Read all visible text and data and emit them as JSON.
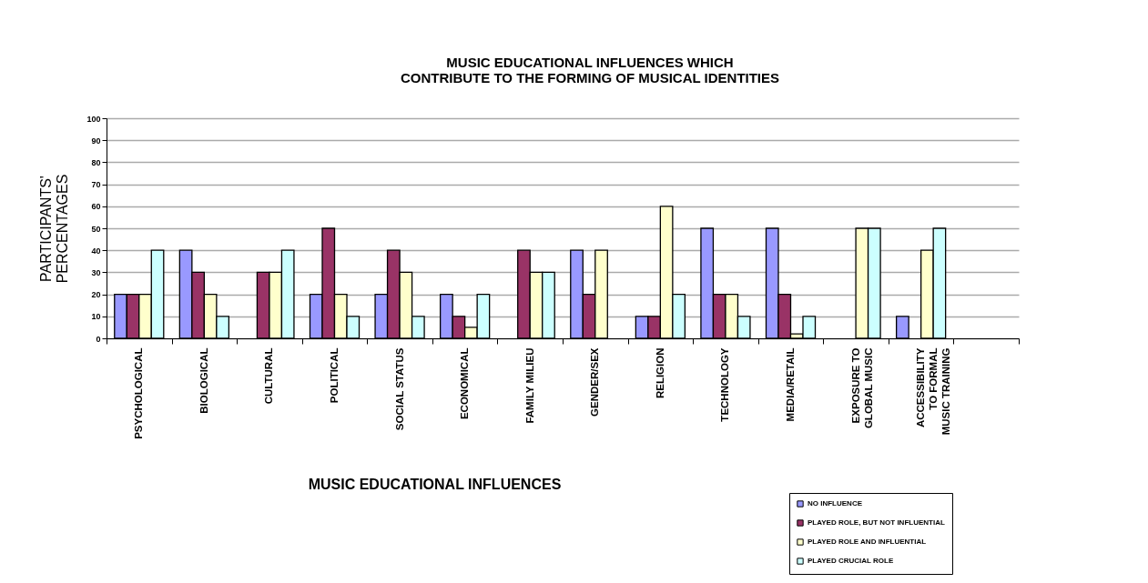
{
  "chart_data": {
    "type": "bar",
    "title": "MUSIC EDUCATIONAL INFLUENCES WHICH\nCONTRIBUTE TO THE FORMING OF MUSICAL IDENTITIES",
    "xlabel": "MUSIC EDUCATIONAL INFLUENCES",
    "ylabel": "PARTICIPANTS'\nPERCENTAGES",
    "categories": [
      "PSYCHOLOGICAL",
      "BIOLOGICAL",
      "CULTURAL",
      "POLITICAL",
      "SOCIAL STATUS",
      "ECONOMICAL",
      "FAMILY MILIEU",
      "GENDER/SEX",
      "RELIGION",
      "TECHNOLOGY",
      "MEDIA/RETAIL",
      "EXPOSURE TO\nGLOBAL MUSIC",
      "ACCESSIBILITY\nTO FORMAL\nMUSIC TRAINING",
      null
    ],
    "series": [
      {
        "name": "NO INFLUENCE",
        "color": "#9999ff",
        "values": [
          20,
          40,
          null,
          20,
          20,
          20,
          null,
          40,
          10,
          50,
          50,
          null,
          10,
          null
        ]
      },
      {
        "name": "PLAYED ROLE, BUT NOT INFLUENTIAL",
        "color": "#993366",
        "values": [
          20,
          30,
          30,
          50,
          40,
          10,
          40,
          20,
          10,
          20,
          20,
          null,
          null,
          null
        ]
      },
      {
        "name": "PLAYED ROLE AND INFLUENTIAL",
        "color": "#ffffcc",
        "values": [
          20,
          20,
          30,
          20,
          30,
          5,
          30,
          40,
          60,
          20,
          2,
          50,
          40,
          null
        ]
      },
      {
        "name": "PLAYED CRUCIAL ROLE",
        "color": "#ccffff",
        "values": [
          40,
          10,
          40,
          10,
          10,
          20,
          30,
          null,
          20,
          10,
          10,
          50,
          50,
          null
        ]
      }
    ],
    "ylim": [
      0,
      100
    ],
    "yticks": [
      0,
      10,
      20,
      30,
      40,
      50,
      60,
      70,
      80,
      90,
      100
    ],
    "grid": "y",
    "legend": "bottom right"
  }
}
